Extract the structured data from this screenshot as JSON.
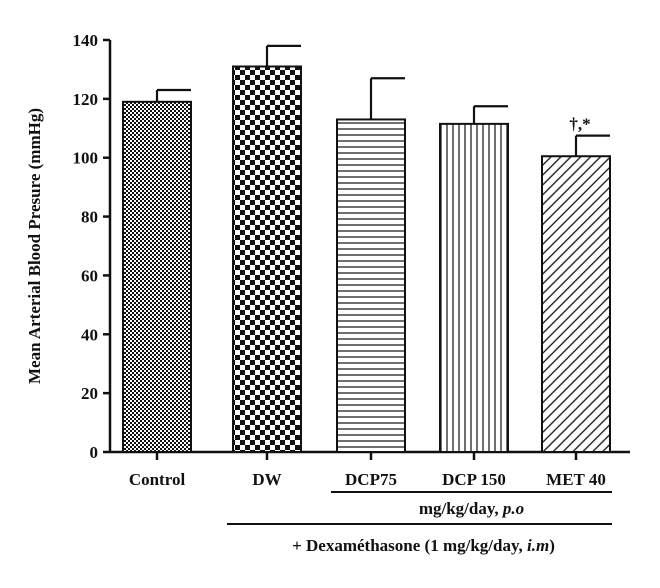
{
  "chart_data": {
    "type": "bar",
    "title": "",
    "xlabel": "",
    "ylabel": "Mean Arterial Blood Presure (mmHg)",
    "ylim": [
      0,
      140
    ],
    "yticks": [
      0,
      20,
      40,
      60,
      80,
      100,
      120,
      140
    ],
    "grid": false,
    "categories": [
      "Control",
      "DW",
      "DCP75",
      "DCP 150",
      "MET 40"
    ],
    "values": [
      119,
      131,
      113,
      111.5,
      100.5
    ],
    "errors": [
      4,
      7,
      14,
      6,
      7
    ],
    "patterns": [
      "fine-checker",
      "coarse-checker",
      "horizontal-lines",
      "vertical-lines",
      "diagonal-lines"
    ],
    "annotations": [
      {
        "category": "MET 40",
        "text": "†,*"
      }
    ],
    "group_labels": {
      "dose": {
        "text": "mg/kg/day, ",
        "italic": "p.o",
        "spans": [
          "DCP75",
          "MET 40"
        ]
      },
      "treatment": {
        "text": "+ Dexaméthasone (1 mg/kg/day, ",
        "italic": "i.m",
        "suffix": ")",
        "spans": [
          "DW",
          "MET 40"
        ]
      }
    },
    "colors": {
      "ink": "#111111",
      "fill": "#ffffff"
    }
  }
}
